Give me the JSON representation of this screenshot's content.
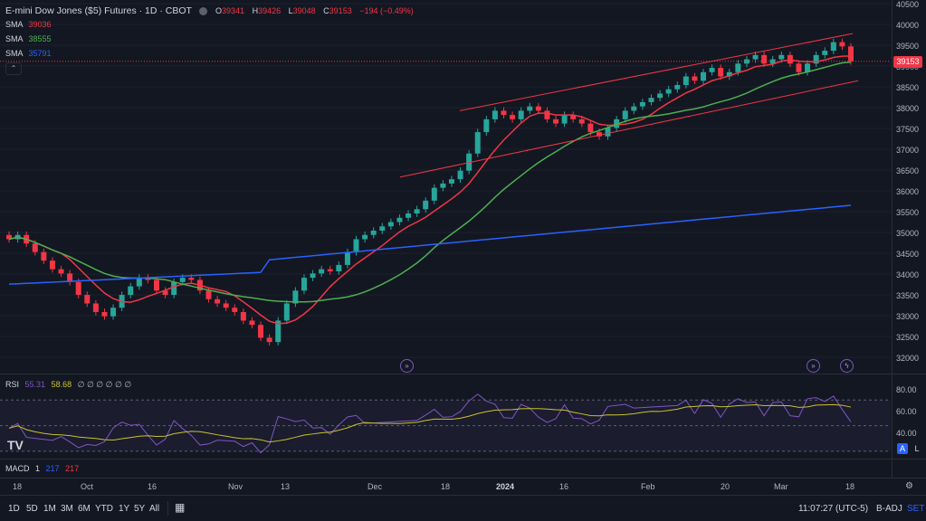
{
  "header": {
    "symbol_title": "E-mini Dow Jones ($5) Futures · 1D · CBOT",
    "ohlc": {
      "o_label": "O",
      "o": "39341",
      "h_label": "H",
      "h": "39426",
      "l_label": "L",
      "l": "39048",
      "c_label": "C",
      "c": "39153",
      "change": "−194 (−0.49%)"
    }
  },
  "indicators": [
    {
      "label": "SMA",
      "value": "39036",
      "color": "#f23645"
    },
    {
      "label": "SMA",
      "value": "38555",
      "color": "#4caf50"
    },
    {
      "label": "SMA",
      "value": "35791",
      "color": "#2962ff"
    }
  ],
  "price_axis": [
    "40500",
    "40000",
    "39500",
    "39000",
    "38500",
    "38000",
    "37500",
    "37000",
    "36500",
    "36000",
    "35500",
    "35000",
    "34500",
    "34000",
    "33500",
    "33000",
    "32500",
    "32000"
  ],
  "last_price_tag": "39153",
  "rsi": {
    "label": "RSI",
    "value1": "55.31",
    "value2": "58.68",
    "placeholders": "∅ ∅ ∅ ∅ ∅ ∅",
    "axis": [
      "80.00",
      "60.00",
      "40.00"
    ]
  },
  "macd": {
    "label": "MACD",
    "v1": "1",
    "v2": "217",
    "v3": "217"
  },
  "time_axis": [
    "18",
    "Oct",
    "16",
    "Nov",
    "13",
    "Dec",
    "18",
    "2024",
    "16",
    "Feb",
    "20",
    "Mar",
    "18"
  ],
  "bottom_bar": {
    "ranges": [
      "1D",
      "5D",
      "1M",
      "3M",
      "6M",
      "YTD",
      "1Y",
      "5Y",
      "All"
    ],
    "clock": "11:07:27 (UTC-5)",
    "badj": "B-ADJ",
    "set": "SET"
  },
  "scale_buttons": {
    "auto": "A",
    "log": "L"
  },
  "colors": {
    "up": "#26a69a",
    "down": "#f23645",
    "sma20": "#f23645",
    "sma50": "#4caf50",
    "sma200": "#2962ff",
    "rsi": "#7e57c2",
    "rsi_ma": "#c9c32d",
    "channel": "#f23645"
  },
  "chart_data": {
    "type": "candlestick",
    "ylim": [
      31800,
      40500
    ],
    "candles_close_approx": [
      35000,
      35100,
      34900,
      34700,
      34500,
      34300,
      34200,
      34000,
      33700,
      33500,
      33300,
      33200,
      33400,
      33700,
      33900,
      34100,
      34050,
      33800,
      33700,
      34000,
      34100,
      34050,
      33800,
      33600,
      33500,
      33400,
      33300,
      33100,
      33000,
      32700,
      32600,
      33100,
      33500,
      33800,
      34100,
      34200,
      34300,
      34250,
      34400,
      34700,
      35000,
      35100,
      35200,
      35300,
      35400,
      35500,
      35600,
      35700,
      35900,
      36200,
      36300,
      36400,
      36600,
      37000,
      37500,
      37800,
      38000,
      37900,
      37800,
      38000,
      38100,
      38000,
      37800,
      37700,
      37900,
      37800,
      37700,
      37500,
      37400,
      37600,
      37800,
      38000,
      38100,
      38200,
      38300,
      38400,
      38500,
      38600,
      38800,
      38700,
      38900,
      39000,
      38800,
      38900,
      39100,
      39200,
      39300,
      39100,
      39200,
      39300,
      39100,
      38900,
      39100,
      39300,
      39400,
      39600,
      39500,
      39153
    ],
    "sma_latest": [
      39036,
      38555,
      35791
    ],
    "rsi_latest": [
      55.31,
      58.68
    ],
    "rsi_ylim": [
      25,
      90
    ]
  }
}
